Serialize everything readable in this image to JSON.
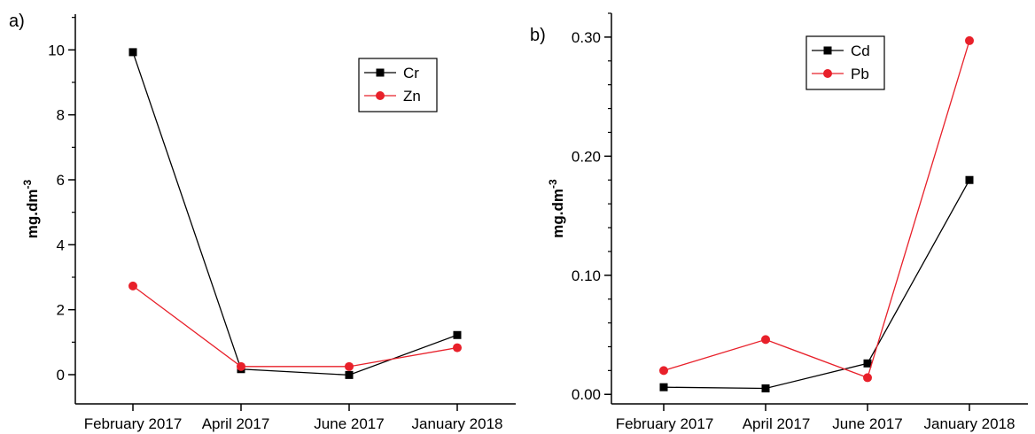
{
  "chart_data": [
    {
      "panel_label": "a)",
      "type": "line",
      "categories": [
        "February 2017",
        "April 2017",
        "June 2017",
        "January 2018"
      ],
      "ylabel": "mg.dm",
      "ylabel_superscript": "-3",
      "ylim": [
        -0.9,
        11.1
      ],
      "yticks": [
        0,
        2,
        4,
        6,
        8,
        10
      ],
      "ytick_labels": [
        "0",
        "2",
        "4",
        "6",
        "8",
        "10"
      ],
      "grid": false,
      "legend_position": "top-right",
      "series": [
        {
          "name": "Cr",
          "marker": "square",
          "color": "#000000",
          "values": [
            9.93,
            0.17,
            -0.01,
            1.22
          ]
        },
        {
          "name": "Zn",
          "marker": "circle",
          "color": "#e8202a",
          "values": [
            2.73,
            0.25,
            0.25,
            0.83
          ]
        }
      ]
    },
    {
      "panel_label": "b)",
      "type": "line",
      "categories": [
        "February 2017",
        "April 2017",
        "June 2017",
        "January 2018"
      ],
      "ylabel": "mg.dm",
      "ylabel_superscript": "-3",
      "ylim": [
        -0.008,
        0.32
      ],
      "yticks": [
        0.0,
        0.1,
        0.2,
        0.3
      ],
      "ytick_labels": [
        "0.00",
        "0.10",
        "0.20",
        "0.30"
      ],
      "grid": false,
      "legend_position": "top-center",
      "series": [
        {
          "name": "Cd",
          "marker": "square",
          "color": "#000000",
          "values": [
            0.006,
            0.005,
            0.026,
            0.18
          ]
        },
        {
          "name": "Pb",
          "marker": "circle",
          "color": "#e8202a",
          "values": [
            0.02,
            0.046,
            0.014,
            0.297
          ]
        }
      ]
    }
  ]
}
